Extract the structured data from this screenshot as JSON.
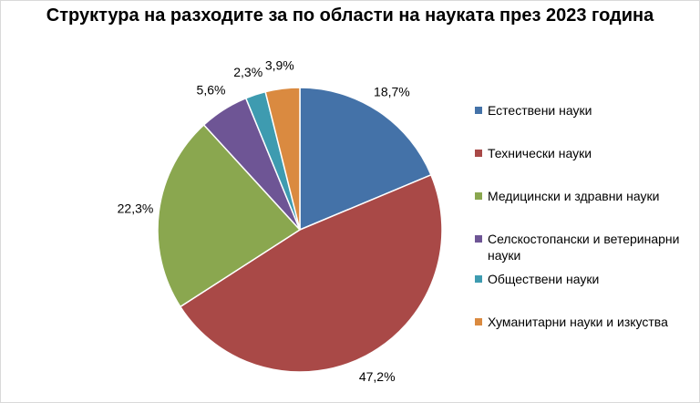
{
  "chart_data": {
    "type": "pie",
    "title": "Структура на разходите за по области на науката през 2023 година",
    "legend_position": "right",
    "slices": [
      {
        "label": "Естествени науки",
        "value": 18.7,
        "value_label": "18,7%",
        "color": "#4472a8"
      },
      {
        "label": "Технически науки",
        "value": 47.2,
        "value_label": "47,2%",
        "color": "#a94947"
      },
      {
        "label": "Медицински и здравни науки",
        "value": 22.3,
        "value_label": "22,3%",
        "color": "#8aa74f"
      },
      {
        "label": "Селскостопански и ветеринарни науки",
        "value": 5.6,
        "value_label": "5,6%",
        "color": "#6e5595"
      },
      {
        "label": "Обществени науки",
        "value": 2.3,
        "value_label": "2,3%",
        "color": "#3e9bb0"
      },
      {
        "label": "Хуманитарни науки и изкуства",
        "value": 3.9,
        "value_label": "3,9%",
        "color": "#da8a40"
      }
    ]
  }
}
